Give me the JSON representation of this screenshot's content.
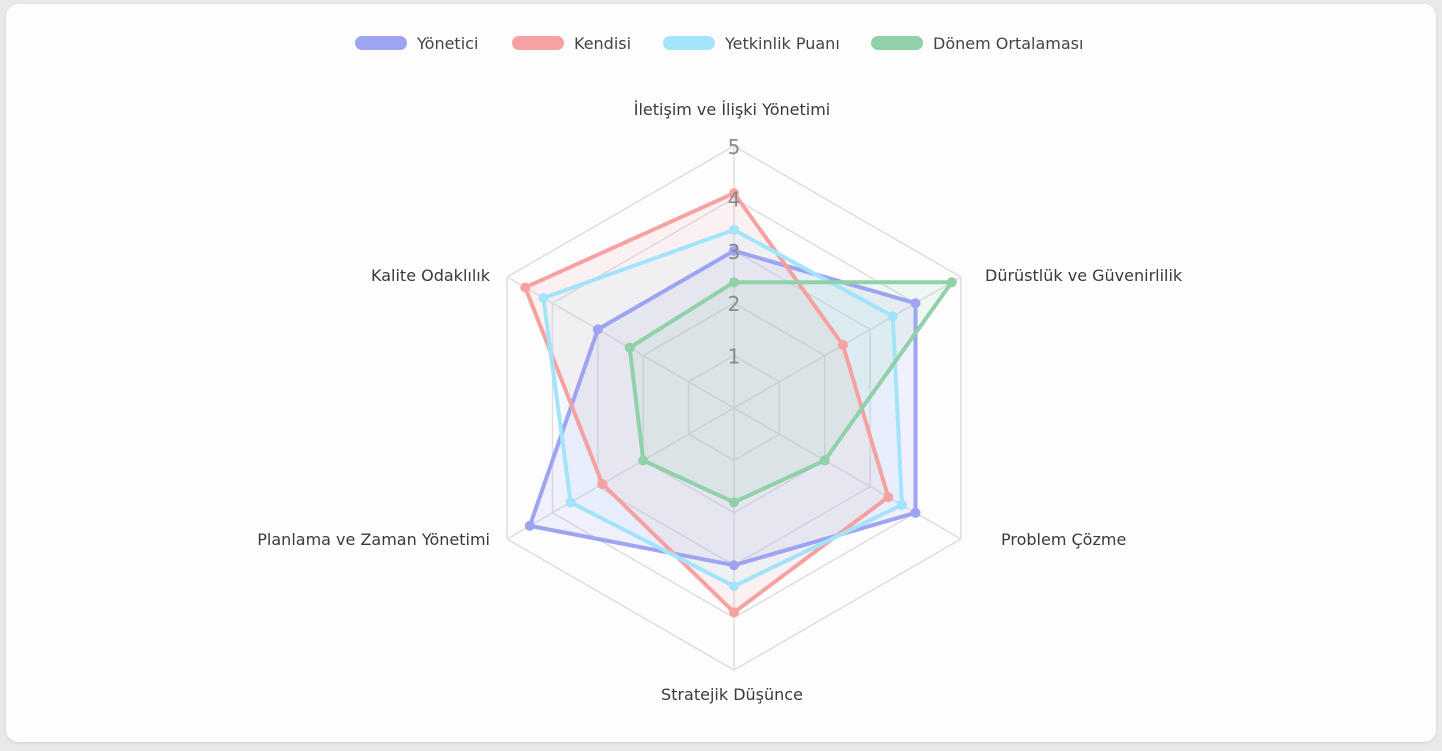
{
  "chart_data": {
    "type": "radar",
    "title": "",
    "axes": [
      "İletişim ve İlişki Yönetimi",
      "Dürüstlük ve Güvenirlilik",
      "Problem Çözme",
      "Stratejik Düşünce",
      "Planlama ve Zaman Yönetimi",
      "Kalite Odaklılık"
    ],
    "rlim": [
      0,
      5
    ],
    "ticks": [
      "1",
      "2",
      "3",
      "4",
      "5"
    ],
    "grid": true,
    "legend_position": "top",
    "series": [
      {
        "name": "Yönetici",
        "color": "#9da4f2",
        "values": [
          3.0,
          4.0,
          4.0,
          3.0,
          4.5,
          3.0
        ]
      },
      {
        "name": "Kendisi",
        "color": "#f7a2a2",
        "values": [
          4.1,
          2.4,
          3.4,
          3.9,
          2.9,
          4.6
        ]
      },
      {
        "name": "Yetkinlik Puanı",
        "color": "#a3e4fa",
        "values": [
          3.4,
          3.5,
          3.7,
          3.4,
          3.6,
          4.2
        ]
      },
      {
        "name": "Dönem Ortalaması",
        "color": "#91d1a9",
        "values": [
          2.4,
          4.8,
          2.0,
          1.8,
          2.0,
          2.3
        ]
      }
    ]
  }
}
